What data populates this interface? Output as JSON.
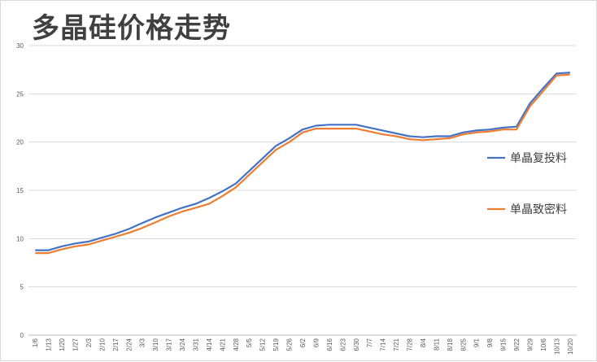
{
  "chart_data": {
    "type": "line",
    "title": "多晶硅价格走势",
    "xlabel": "",
    "ylabel": "",
    "ylim": [
      0,
      30
    ],
    "yticks": [
      0,
      5,
      10,
      15,
      20,
      25,
      30
    ],
    "grid": true,
    "legend_position": "right",
    "categories": [
      "1/6",
      "1/13",
      "1/20",
      "1/27",
      "2/3",
      "2/10",
      "2/17",
      "2/24",
      "3/3",
      "3/10",
      "3/17",
      "3/24",
      "3/31",
      "4/14",
      "4/21",
      "4/28",
      "5/5",
      "5/12",
      "5/19",
      "5/26",
      "6/2",
      "6/9",
      "6/16",
      "6/23",
      "6/30",
      "7/7",
      "7/14",
      "7/21",
      "7/28",
      "8/4",
      "8/11",
      "8/18",
      "8/25",
      "9/1",
      "9/8",
      "9/15",
      "9/22",
      "9/29",
      "10/6",
      "10/13",
      "10/20"
    ],
    "series": [
      {
        "name": "单晶复投料",
        "color": "#4472C4",
        "values": [
          8.8,
          8.8,
          9.2,
          9.5,
          9.7,
          10.1,
          10.5,
          11.0,
          11.6,
          12.2,
          12.7,
          13.2,
          13.6,
          14.2,
          14.9,
          15.7,
          17.0,
          18.3,
          19.6,
          20.4,
          21.3,
          21.7,
          21.8,
          21.8,
          21.8,
          21.5,
          21.2,
          20.9,
          20.6,
          20.5,
          20.6,
          20.6,
          21.0,
          21.2,
          21.3,
          21.5,
          21.6,
          24.0,
          25.6,
          27.1,
          27.2
        ]
      },
      {
        "name": "单晶致密料",
        "color": "#ED7D31",
        "values": [
          8.5,
          8.5,
          8.9,
          9.2,
          9.4,
          9.8,
          10.2,
          10.6,
          11.1,
          11.7,
          12.3,
          12.8,
          13.2,
          13.6,
          14.4,
          15.3,
          16.6,
          17.9,
          19.2,
          20.0,
          21.0,
          21.4,
          21.4,
          21.4,
          21.4,
          21.1,
          20.8,
          20.6,
          20.3,
          20.2,
          20.3,
          20.4,
          20.8,
          21.0,
          21.1,
          21.3,
          21.3,
          23.7,
          25.3,
          26.9,
          27.0
        ]
      }
    ]
  }
}
